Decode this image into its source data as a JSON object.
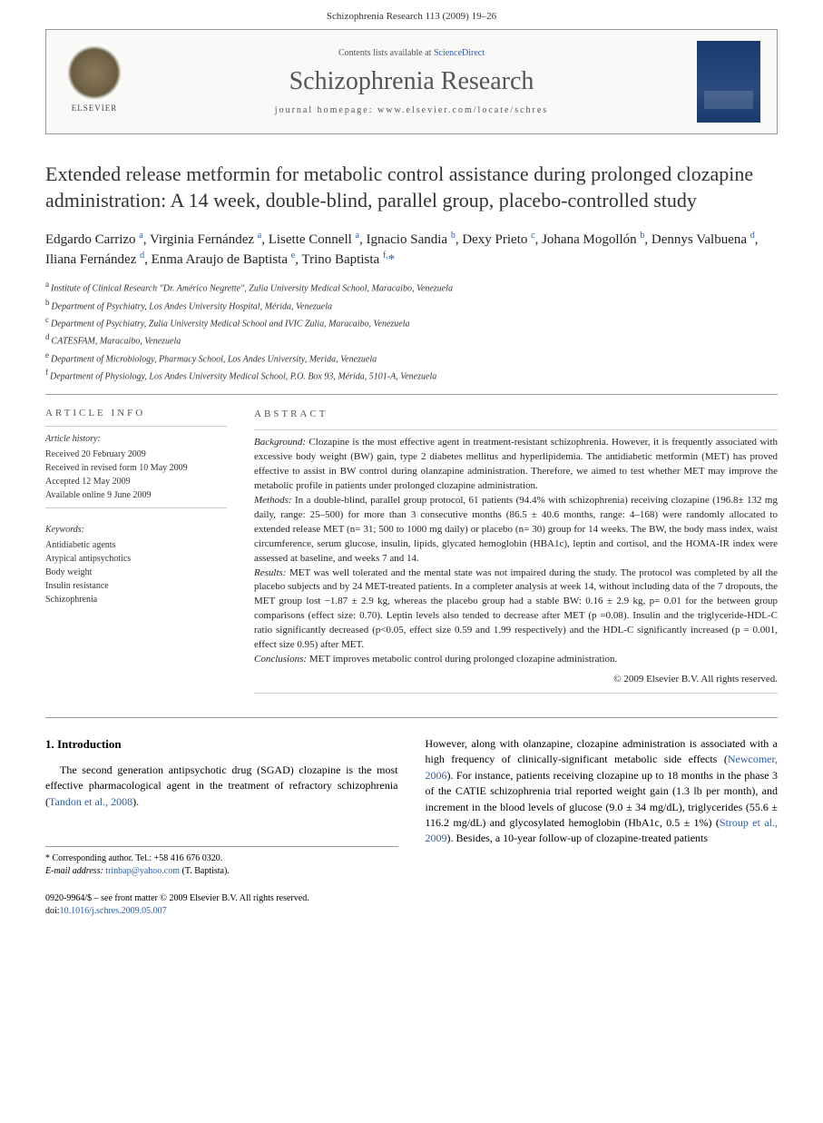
{
  "page_header": "Schizophrenia Research 113 (2009) 19–26",
  "masthead": {
    "publisher_label": "ELSEVIER",
    "contents_prefix": "Contents lists available at ",
    "contents_link": "ScienceDirect",
    "journal_name": "Schizophrenia Research",
    "homepage_prefix": "journal homepage: ",
    "homepage_url": "www.elsevier.com/locate/schres"
  },
  "article": {
    "title": "Extended release metformin for metabolic control assistance during prolonged clozapine administration: A 14 week, double-blind, parallel group, placebo-controlled study",
    "authors_html": "Edgardo Carrizo <sup>a</sup>, Virginia Fernández <sup>a</sup>, Lisette Connell <sup>a</sup>, Ignacio Sandia <sup>b</sup>, Dexy Prieto <sup>c</sup>, Johana Mogollón <sup>b</sup>, Dennys Valbuena <sup>d</sup>, Iliana Fernández <sup>d</sup>, Enma Araujo de Baptista <sup>e</sup>, Trino Baptista <sup>f,</sup><span class='corr-mark'>*</span>",
    "affiliations": [
      {
        "sup": "a",
        "text": "Institute of Clinical Research \"Dr. Américo Negrette\", Zulia University Medical School, Maracaibo, Venezuela"
      },
      {
        "sup": "b",
        "text": "Department of Psychiatry, Los Andes University Hospital, Mérida, Venezuela"
      },
      {
        "sup": "c",
        "text": "Department of Psychiatry, Zulia University Medical School and IVIC Zulia, Maracaibo, Venezuela"
      },
      {
        "sup": "d",
        "text": "CATESFAM, Maracaibo, Venezuela"
      },
      {
        "sup": "e",
        "text": "Department of Microbiology, Pharmacy School, Los Andes University, Merida, Venezuela"
      },
      {
        "sup": "f",
        "text": "Department of Physiology, Los Andes University Medical School, P.O. Box 93, Mérida, 5101-A, Venezuela"
      }
    ]
  },
  "article_info": {
    "heading": "ARTICLE INFO",
    "history_label": "Article history:",
    "history": [
      "Received 20 February 2009",
      "Received in revised form 10 May 2009",
      "Accepted 12 May 2009",
      "Available online 9 June 2009"
    ],
    "keywords_label": "Keywords:",
    "keywords": [
      "Antidiabetic agents",
      "Atypical antipsychotics",
      "Body weight",
      "Insulin resistance",
      "Schizophrenia"
    ]
  },
  "abstract": {
    "heading": "ABSTRACT",
    "sections": {
      "background_label": "Background:",
      "background_text": " Clozapine is the most effective agent in treatment-resistant schizophrenia. However, it is frequently associated with excessive body weight (BW) gain, type 2 diabetes mellitus and hyperlipidemia. The antidiabetic metformin (MET) has proved effective to assist in BW control during olanzapine administration. Therefore, we aimed to test whether MET may improve the metabolic profile in patients under prolonged clozapine administration.",
      "methods_label": "Methods:",
      "methods_text": " In a double-blind, parallel group protocol, 61 patients (94.4% with schizophrenia) receiving clozapine (196.8± 132 mg daily, range: 25–500) for more than 3 consecutive months (86.5 ± 40.6 months, range: 4–168) were randomly allocated to extended release MET (n= 31; 500 to 1000 mg daily) or placebo (n= 30) group for 14 weeks. The BW, the body mass index, waist circumference, serum glucose, insulin, lipids, glycated hemoglobin (HBA1c), leptin and cortisol, and the HOMA-IR index were assessed at baseline, and weeks 7 and 14.",
      "results_label": "Results:",
      "results_text": " MET was well tolerated and the mental state was not impaired during the study. The protocol was completed by all the placebo subjects and by 24 MET-treated patients. In a completer analysis at week 14, without including data of the 7 dropouts, the MET group lost −1.87 ± 2.9 kg, whereas the placebo group had a stable BW: 0.16 ± 2.9 kg, p= 0.01 for the between group comparisons (effect size: 0.70). Leptin levels also tended to decrease after MET (p =0.08). Insulin and the triglyceride-HDL-C ratio significantly decreased (p<0.05, effect size 0.59 and 1.99 respectively) and the HDL-C significantly increased (p = 0.001, effect size 0.95) after MET.",
      "conclusions_label": "Conclusions:",
      "conclusions_text": " MET improves metabolic control during prolonged clozapine administration."
    },
    "copyright": "© 2009 Elsevier B.V. All rights reserved."
  },
  "body": {
    "intro_heading": "1. Introduction",
    "col1_p1_pre": "The second generation antipsychotic drug (SGAD) clozapine is the most effective pharmacological agent in the treatment of refractory schizophrenia (",
    "col1_p1_link": "Tandon et al., 2008",
    "col1_p1_post": ").",
    "col2_p1_a": "However, along with olanzapine, clozapine administration is associated with a high frequency of clinically-significant metabolic side effects (",
    "col2_p1_link1": "Newcomer, 2006",
    "col2_p1_b": "). For instance, patients receiving clozapine up to 18 months in the phase 3 of the CATIE schizophrenia trial reported weight gain (1.3 lb per month), and increment in the blood levels of glucose (9.0 ± 34 mg/dL), triglycerides (55.6 ± 116.2 mg/dL) and glycosylated hemoglobin (HbA1c, 0.5 ± 1%) (",
    "col2_p1_link2": "Stroup et al., 2009",
    "col2_p1_c": "). Besides, a 10-year follow-up of clozapine-treated patients"
  },
  "footnote": {
    "corr_label": "* Corresponding author. Tel.: +58 416 676 0320.",
    "email_label": "E-mail address:",
    "email": "trinbap@yahoo.com",
    "email_name": "(T. Baptista)."
  },
  "footer": {
    "line1": "0920-9964/$ – see front matter © 2009 Elsevier B.V. All rights reserved.",
    "doi_prefix": "doi:",
    "doi": "10.1016/j.schres.2009.05.007"
  },
  "colors": {
    "link": "#2a5db0",
    "text": "#222222",
    "muted": "#555555",
    "border": "#999999"
  }
}
